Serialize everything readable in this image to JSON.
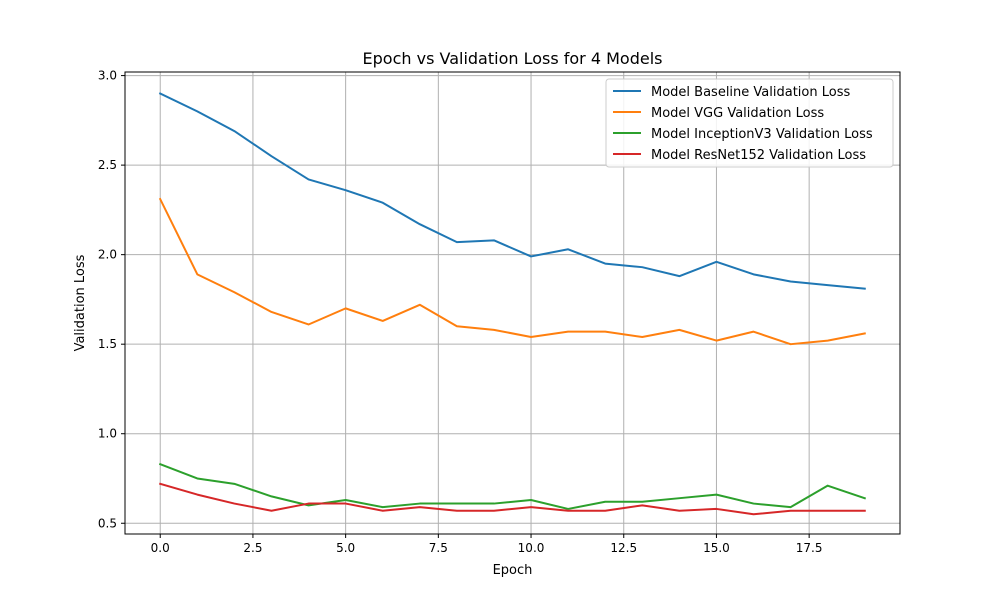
{
  "chart_data": {
    "type": "line",
    "title": "Epoch vs Validation Loss for 4 Models",
    "xlabel": "Epoch",
    "ylabel": "Validation Loss",
    "xlim": [
      -0.95,
      19.95
    ],
    "ylim": [
      0.44,
      3.02
    ],
    "xticks": [
      0,
      2.5,
      5,
      7.5,
      10,
      12.5,
      15,
      17.5
    ],
    "xtick_labels": [
      "0.0",
      "2.5",
      "5.0",
      "7.5",
      "10.0",
      "12.5",
      "15.0",
      "17.5"
    ],
    "yticks": [
      0.5,
      1.0,
      1.5,
      2.0,
      2.5,
      3.0
    ],
    "ytick_labels": [
      "0.5",
      "1.0",
      "1.5",
      "2.0",
      "2.5",
      "3.0"
    ],
    "grid": true,
    "legend_position": "top-right",
    "x": [
      0,
      1,
      2,
      3,
      4,
      5,
      6,
      7,
      8,
      9,
      10,
      11,
      12,
      13,
      14,
      15,
      16,
      17,
      18,
      19
    ],
    "series": [
      {
        "name": "Model Baseline Validation Loss",
        "color": "#1f77b4",
        "values": [
          2.9,
          2.8,
          2.69,
          2.55,
          2.42,
          2.36,
          2.29,
          2.17,
          2.07,
          2.08,
          1.99,
          2.03,
          1.95,
          1.93,
          1.88,
          1.96,
          1.89,
          1.85,
          1.83,
          1.81
        ]
      },
      {
        "name": "Model VGG Validation Loss",
        "color": "#ff7f0e",
        "values": [
          2.31,
          1.89,
          1.79,
          1.68,
          1.61,
          1.7,
          1.63,
          1.72,
          1.6,
          1.58,
          1.54,
          1.57,
          1.57,
          1.54,
          1.58,
          1.52,
          1.57,
          1.5,
          1.52,
          1.56
        ]
      },
      {
        "name": "Model InceptionV3 Validation Loss",
        "color": "#2ca02c",
        "values": [
          0.83,
          0.75,
          0.72,
          0.65,
          0.6,
          0.63,
          0.59,
          0.61,
          0.61,
          0.61,
          0.63,
          0.58,
          0.62,
          0.62,
          0.64,
          0.66,
          0.61,
          0.59,
          0.71,
          0.64
        ]
      },
      {
        "name": "Model ResNet152 Validation Loss",
        "color": "#d62728",
        "values": [
          0.72,
          0.66,
          0.61,
          0.57,
          0.61,
          0.61,
          0.57,
          0.59,
          0.57,
          0.57,
          0.59,
          0.57,
          0.57,
          0.6,
          0.57,
          0.58,
          0.55,
          0.57,
          0.57,
          0.57
        ]
      }
    ]
  }
}
